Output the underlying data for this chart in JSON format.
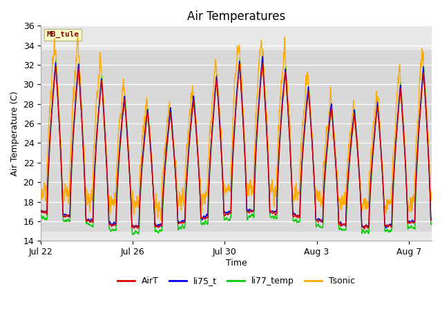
{
  "title": "Air Temperatures",
  "xlabel": "Time",
  "ylabel": "Air Temperature (C)",
  "ylim": [
    14,
    36
  ],
  "xlim_days": [
    0,
    17
  ],
  "x_ticks_days": [
    0,
    4,
    8,
    12,
    16
  ],
  "x_tick_labels": [
    "Jul 22",
    "Jul 26",
    "Jul 30",
    "Aug 3",
    "Aug 7"
  ],
  "line_colors": {
    "AirT": "#dd0000",
    "li75_t": "#0000ee",
    "li77_temp": "#00cc00",
    "Tsonic": "#ffaa00"
  },
  "legend_labels": [
    "AirT",
    "li75_t",
    "li77_temp",
    "Tsonic"
  ],
  "mb_tule_label": "MB_tule",
  "mb_tule_color": "#880000",
  "mb_tule_bg": "#ffffcc",
  "background_color": "#ffffff",
  "plot_bg_color": "#e8e8e8",
  "shade_ymin": 15.0,
  "shade_ymax": 33.5,
  "grid_color": "#ffffff",
  "title_fontsize": 12,
  "axis_fontsize": 9,
  "legend_fontsize": 9,
  "num_points": 2040,
  "days": 17,
  "base_night": 16.0,
  "peak_day": 30.0,
  "tsonic_boost": 2.5
}
